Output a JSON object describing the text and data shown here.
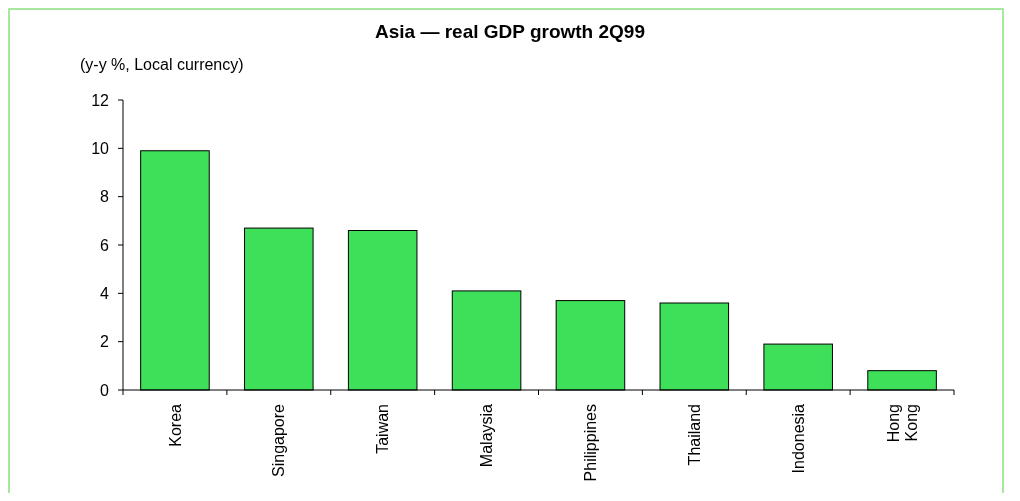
{
  "chart_data": {
    "type": "bar",
    "title": "Asia — real GDP growth 2Q99",
    "ylabel": "(y-y %, Local currency)",
    "categories": [
      "Korea",
      "Singapore",
      "Taiwan",
      "Malaysia",
      "Philippines",
      "Thailand",
      "Indonesia",
      "Hong Kong"
    ],
    "values": [
      9.9,
      6.7,
      6.6,
      4.1,
      3.7,
      3.6,
      1.9,
      0.8
    ],
    "color": "#3ee05a",
    "ylim": [
      0,
      12
    ],
    "yticks": [
      0,
      2,
      4,
      6,
      8,
      10,
      12
    ],
    "grid": false
  }
}
